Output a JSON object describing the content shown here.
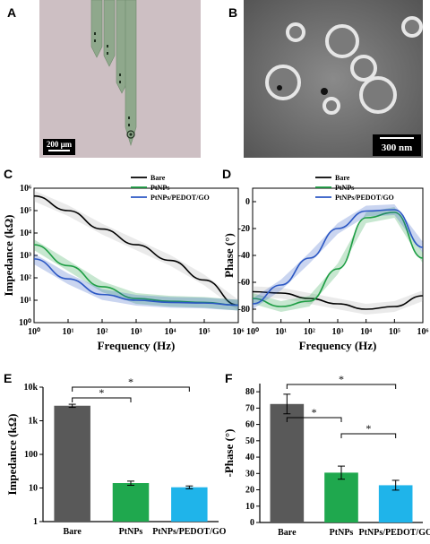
{
  "panels": {
    "A": "A",
    "B": "B",
    "C": "C",
    "D": "D",
    "E": "E",
    "F": "F"
  },
  "images": {
    "A": {
      "scale_bar": "200 μm",
      "subject": "probe-photo",
      "bg": "#cdbfc3",
      "shank": "#8fa88c"
    },
    "B": {
      "scale_bar": "300 nm",
      "subject": "sem-micrograph",
      "bg": "#6f6f6f"
    }
  },
  "colors": {
    "bare": "#000000",
    "ptnps": "#1e9e44",
    "pedot": "#2b57c4",
    "band": "#9a9a9a",
    "bar_bare": "#595959",
    "bar_ptnps": "#1fa84e",
    "bar_pedot": "#1fb4ea"
  },
  "chart_data": [
    {
      "id": "C",
      "type": "line",
      "xlabel": "Frequency (Hz)",
      "ylabel": "Impedance (kΩ)",
      "xscale": "log",
      "yscale": "log",
      "xlim": [
        1,
        1000000
      ],
      "ylim": [
        1,
        1000000
      ],
      "xticks": [
        "10⁰",
        "10¹",
        "10²",
        "10³",
        "10⁴",
        "10⁵",
        "10⁶"
      ],
      "yticks": [
        "10⁰",
        "10¹",
        "10²",
        "10³",
        "10⁴",
        "10⁵",
        "10⁶"
      ],
      "legend": "top-right",
      "series": [
        {
          "name": "Bare",
          "x": [
            1,
            10,
            100,
            1000,
            10000,
            100000,
            1000000
          ],
          "y": [
            450000,
            100000,
            15000,
            3000,
            600,
            80,
            6
          ]
        },
        {
          "name": "PtNPs",
          "x": [
            1,
            10,
            100,
            1000,
            10000,
            100000,
            1000000
          ],
          "y": [
            3000,
            350,
            40,
            12,
            9,
            8,
            6
          ]
        },
        {
          "name": "PtNPs/PEDOT/GO",
          "x": [
            1,
            10,
            100,
            1000,
            10000,
            100000,
            1000000
          ],
          "y": [
            700,
            90,
            18,
            10,
            8,
            7.5,
            6
          ]
        }
      ]
    },
    {
      "id": "D",
      "type": "line",
      "xlabel": "Frequency (Hz)",
      "ylabel": "Phase (°)",
      "xscale": "log",
      "xlim": [
        1,
        1000000
      ],
      "ylim": [
        -90,
        10
      ],
      "xticks": [
        "10⁰",
        "10¹",
        "10²",
        "10³",
        "10⁴",
        "10⁵",
        "10⁶"
      ],
      "yticks": [
        "0",
        "-20",
        "-40",
        "-60",
        "-80"
      ],
      "legend": "top-right",
      "series": [
        {
          "name": "Bare",
          "x": [
            1,
            10,
            100,
            1000,
            10000,
            100000,
            1000000
          ],
          "y": [
            -67,
            -68,
            -72,
            -76,
            -80,
            -78,
            -70
          ]
        },
        {
          "name": "PtNPs",
          "x": [
            1,
            10,
            100,
            1000,
            10000,
            100000,
            1000000
          ],
          "y": [
            -72,
            -78,
            -74,
            -50,
            -12,
            -8,
            -42
          ]
        },
        {
          "name": "PtNPs/PEDOT/GO",
          "x": [
            1,
            10,
            100,
            1000,
            10000,
            100000,
            1000000
          ],
          "y": [
            -76,
            -62,
            -42,
            -20,
            -7,
            -6,
            -34
          ]
        }
      ]
    },
    {
      "id": "E",
      "type": "bar",
      "categories": [
        "Bare",
        "PtNPs",
        "PtNPs/PEDOT/GO"
      ],
      "values": [
        2800,
        14,
        10.5
      ],
      "errors": [
        300,
        2,
        1
      ],
      "ylabel": "Impedance (kΩ)",
      "yscale": "log",
      "ylim": [
        1,
        10000
      ],
      "yticks": [
        "1",
        "10",
        "100",
        "1k",
        "10k"
      ],
      "significance": [
        [
          "Bare",
          "PtNPs",
          "*"
        ],
        [
          "Bare",
          "PtNPs/PEDOT/GO",
          "*"
        ]
      ]
    },
    {
      "id": "F",
      "type": "bar",
      "categories": [
        "Bare",
        "PtNPs",
        "PtNPs/PEDOT/GO"
      ],
      "values": [
        72.5,
        30.5,
        22.8
      ],
      "errors": [
        6,
        4,
        3
      ],
      "ylabel": "-Phase (°)",
      "ylim": [
        0,
        85
      ],
      "yticks": [
        "0",
        "10",
        "20",
        "30",
        "40",
        "50",
        "60",
        "70",
        "80"
      ],
      "significance": [
        [
          "Bare",
          "PtNPs",
          "*"
        ],
        [
          "Bare",
          "PtNPs/PEDOT/GO",
          "*"
        ],
        [
          "PtNPs",
          "PtNPs/PEDOT/GO",
          "*"
        ]
      ]
    }
  ]
}
